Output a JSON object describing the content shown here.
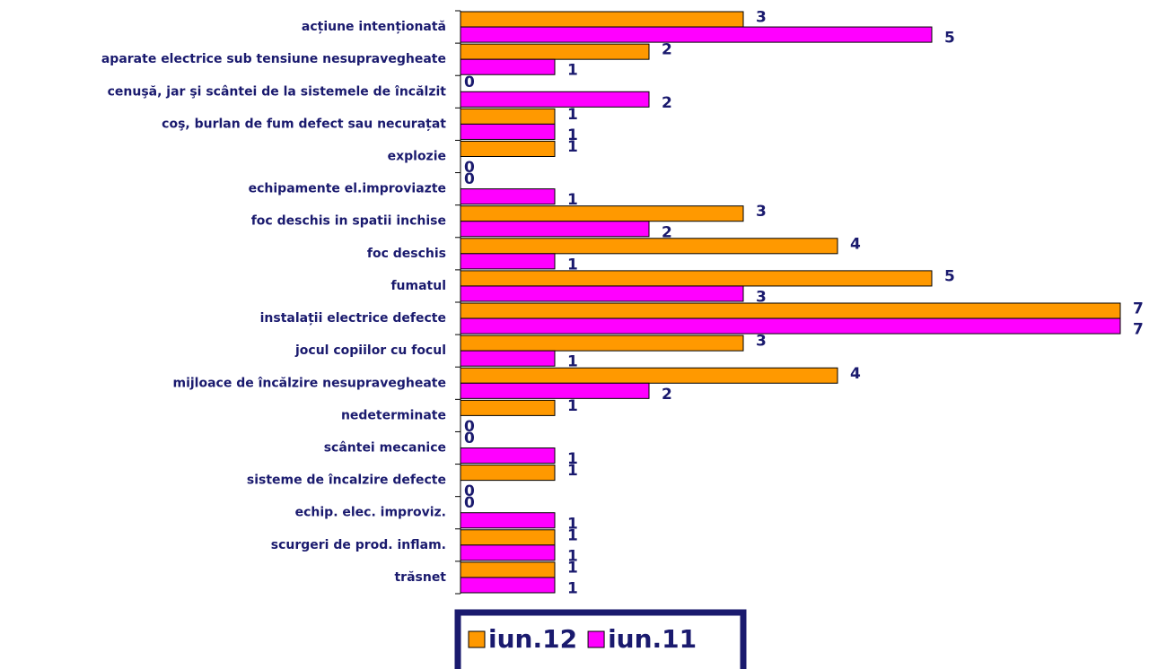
{
  "chart_data": {
    "type": "barh",
    "categories": [
      "acțiune intenționată",
      "aparate electrice sub tensiune nesupravegheate",
      "cenuşă, jar şi scântei de la sistemele de încălzit",
      "coş, burlan  de fum defect sau necurațat",
      "explozie",
      "echipamente el.improviazte",
      "foc deschis in spatii inchise",
      "foc deschis",
      "fumatul",
      "instalații electrice defecte",
      "jocul copiilor cu focul",
      "mijloace de încălzire nesupravegheate",
      "nedeterminate",
      "scântei mecanice",
      "sisteme de încalzire defecte",
      "echip. elec. improviz.",
      "scurgeri de prod. inflam.",
      "trăsnet"
    ],
    "series": [
      {
        "name": "iun.12",
        "color": "#ff9900",
        "values": [
          3,
          2,
          0,
          1,
          1,
          0,
          3,
          4,
          5,
          7,
          3,
          4,
          1,
          0,
          1,
          0,
          1,
          1
        ]
      },
      {
        "name": "iun.11",
        "color": "#ff00ff",
        "values": [
          5,
          1,
          2,
          1,
          0,
          1,
          2,
          1,
          3,
          7,
          1,
          2,
          0,
          1,
          0,
          1,
          1,
          1
        ]
      }
    ],
    "xlim": [
      0,
      7
    ]
  }
}
